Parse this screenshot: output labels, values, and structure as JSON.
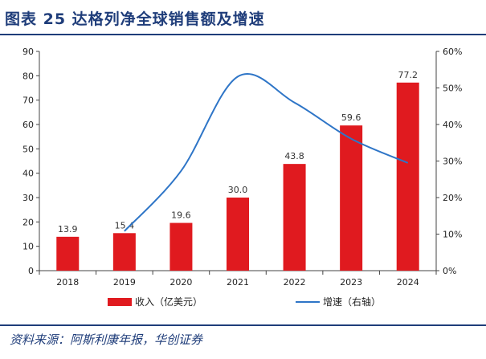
{
  "title": "图表 25  达格列净全球销售额及增速",
  "source": "资料来源：阿斯利康年报，华创证券",
  "colors": {
    "bar": "#e01a1f",
    "line": "#2e75c7",
    "title": "#1f3d7a"
  },
  "chart_data": {
    "type": "bar",
    "categories": [
      "2018",
      "2019",
      "2020",
      "2021",
      "2022",
      "2023",
      "2024"
    ],
    "series": [
      {
        "name": "收入（亿美元）",
        "type": "bar",
        "axis": "left",
        "values": [
          13.9,
          15.4,
          19.6,
          30.0,
          43.8,
          59.6,
          77.2
        ],
        "labels": [
          "13.9",
          "15.4",
          "19.6",
          "30.0",
          "43.8",
          "59.6",
          "77.2"
        ]
      },
      {
        "name": "增速（右轴）",
        "type": "line",
        "axis": "right",
        "values": [
          null,
          0.108,
          0.273,
          0.531,
          0.46,
          0.361,
          0.295
        ]
      }
    ],
    "y_left": {
      "ylim": [
        0,
        90
      ],
      "ticks": [
        "0",
        "10",
        "20",
        "30",
        "40",
        "50",
        "60",
        "70",
        "80",
        "90"
      ]
    },
    "y_right": {
      "ylim": [
        0,
        0.6
      ],
      "ticks": [
        "0%",
        "10%",
        "20%",
        "30%",
        "40%",
        "50%",
        "60%"
      ]
    },
    "legend_position": "bottom",
    "grid": false
  }
}
